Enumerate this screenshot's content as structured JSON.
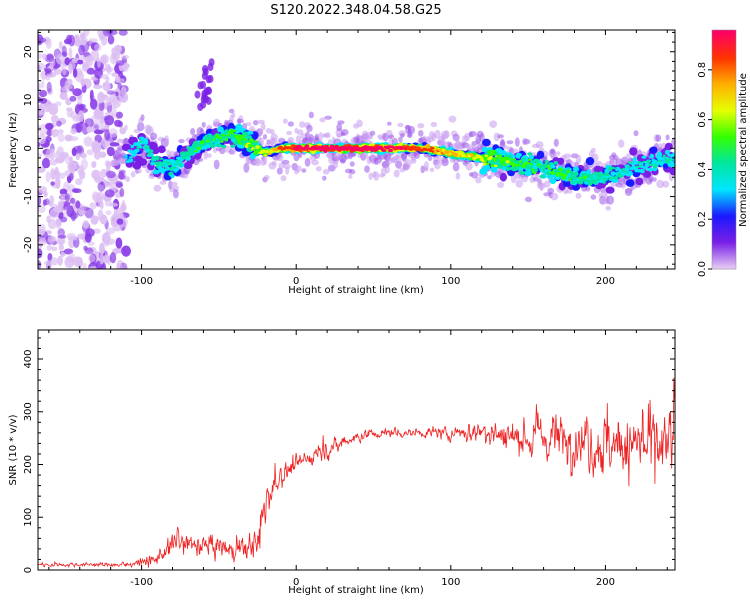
{
  "figure": {
    "title": "S120.2022.348.04.58.G25"
  },
  "chart_data": [
    {
      "type": "heatmap",
      "title": "S120.2022.348.04.58.G25",
      "xlabel": "Height of straight line (km)",
      "ylabel": "Frequency (Hz)",
      "xlim": [
        -167,
        245
      ],
      "ylim": [
        -25,
        24.5
      ],
      "x_ticks": [
        -100,
        0,
        100,
        200
      ],
      "y_ticks": [
        -20,
        -10,
        0,
        10,
        20
      ],
      "colorbar": {
        "label": "Normalized spectral amplitude",
        "range": [
          0.0,
          0.96
        ],
        "ticks": [
          "0.0",
          "0.2",
          "0.4",
          "0.6",
          "0.8"
        ],
        "colormap": [
          "#e6ccf5",
          "#7a1fe6",
          "#1a1aff",
          "#00e6ff",
          "#00e6a0",
          "#33ff00",
          "#e6ff00",
          "#ffb000",
          "#ff3300",
          "#ff0066"
        ]
      },
      "ridge": {
        "x": [
          -110,
          -100,
          -90,
          -80,
          -70,
          -60,
          -50,
          -40,
          -30,
          -20,
          -10,
          0,
          20,
          40,
          60,
          80,
          100,
          120,
          140,
          160,
          180,
          200,
          220,
          240
        ],
        "y": [
          -2,
          1,
          -3,
          -4,
          -1,
          1,
          2,
          3,
          1,
          -1,
          0,
          0,
          0,
          0,
          0,
          0,
          -1,
          -2,
          -3,
          -4,
          -6,
          -6,
          -4,
          -2
        ],
        "amplitude": [
          0.3,
          0.35,
          0.4,
          0.4,
          0.42,
          0.45,
          0.45,
          0.5,
          0.55,
          0.6,
          0.75,
          0.9,
          0.95,
          0.95,
          0.9,
          0.8,
          0.7,
          0.6,
          0.5,
          0.45,
          0.45,
          0.4,
          0.35,
          0.35
        ]
      },
      "noise_region_x": [
        -167,
        -110
      ],
      "grid": false
    },
    {
      "type": "line",
      "xlabel": "Height of straight line (km)",
      "ylabel": "SNR (10 * v/v)",
      "xlim": [
        -167,
        245
      ],
      "ylim": [
        0,
        455
      ],
      "x_ticks": [
        -100,
        0,
        100,
        200
      ],
      "y_ticks": [
        0,
        100,
        200,
        300,
        400
      ],
      "color": "#ee2222",
      "grid": false,
      "envelope": {
        "x": [
          -167,
          -110,
          -90,
          -80,
          -40,
          -25,
          -22,
          -18,
          -10,
          0,
          20,
          40,
          60,
          80,
          100,
          120,
          140,
          160,
          180,
          200,
          220,
          245
        ],
        "mean": [
          10,
          10,
          20,
          50,
          40,
          45,
          110,
          150,
          180,
          200,
          230,
          255,
          260,
          260,
          260,
          262,
          255,
          250,
          245,
          240,
          235,
          235
        ],
        "spread": [
          5,
          5,
          15,
          25,
          25,
          30,
          70,
          40,
          25,
          20,
          20,
          15,
          10,
          10,
          15,
          25,
          40,
          50,
          60,
          70,
          80,
          90
        ]
      }
    }
  ]
}
